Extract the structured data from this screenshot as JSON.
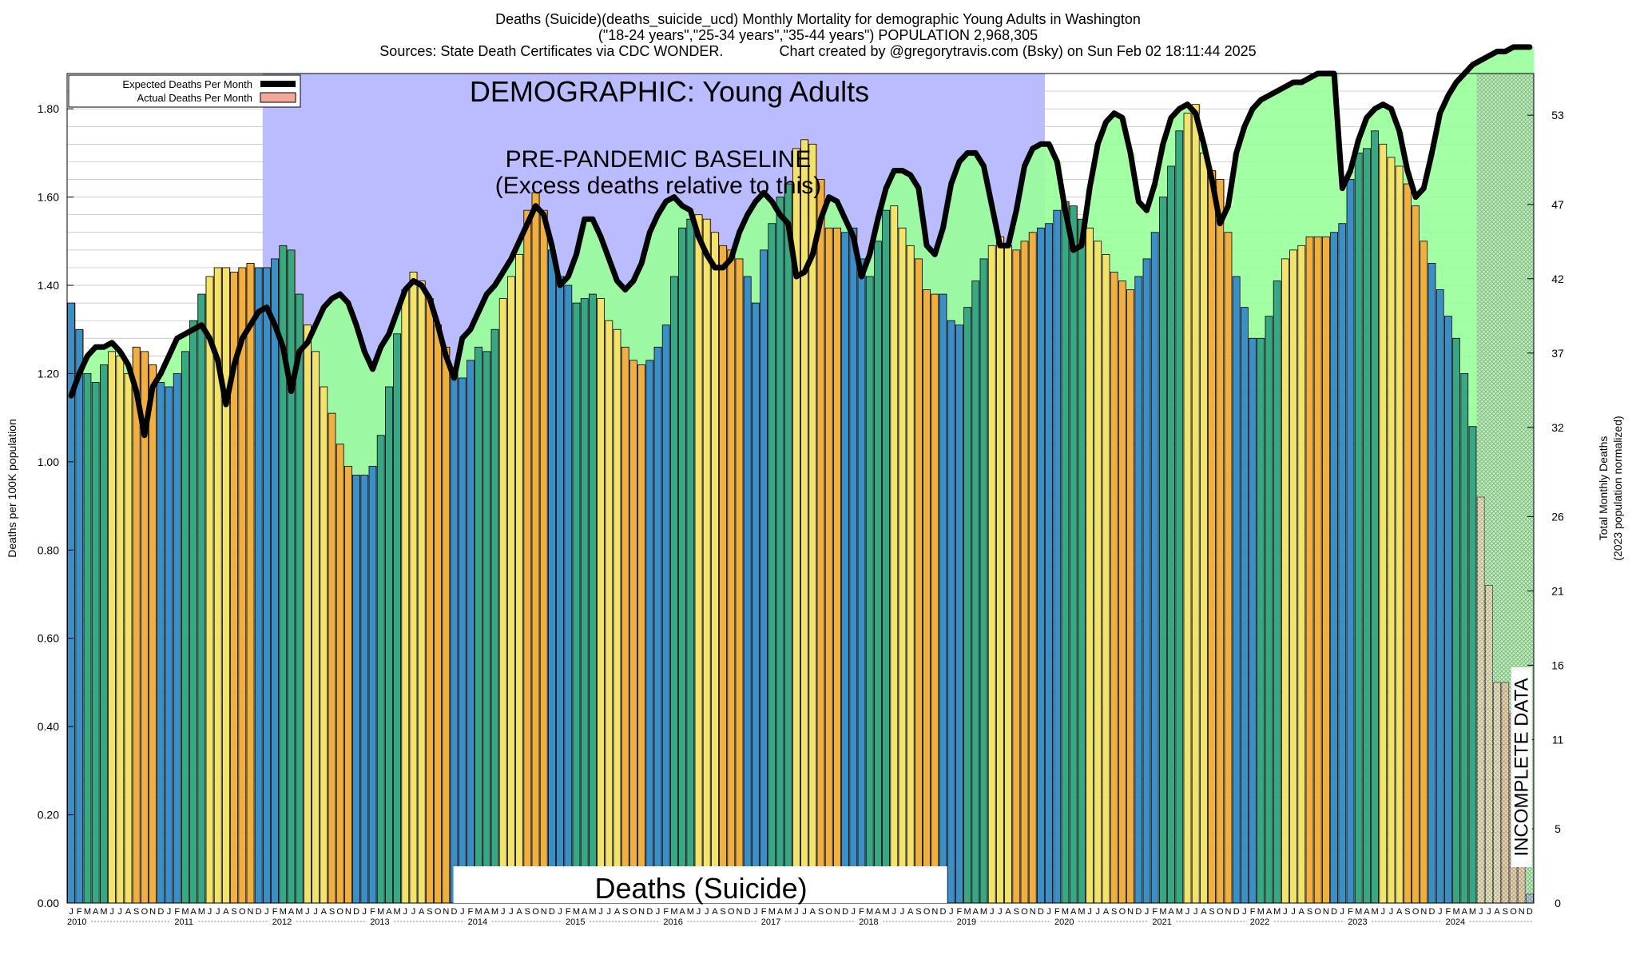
{
  "header": {
    "line1": "Deaths (Suicide)(deaths_suicide_ucd) Monthly Mortality for demographic Young Adults in Washington",
    "line2": "(\"18-24 years\",\"25-34 years\",\"35-44 years\") POPULATION 2,968,305",
    "line3": "Sources: State Death Certificates via CDC WONDER.              Chart created by @gregorytravis.com (Bsky) on Sun Feb 02 18:11:44 2025"
  },
  "annotations": {
    "demographic": "DEMOGRAPHIC: Young Adults",
    "baseline1": "PRE-PANDEMIC BASELINE",
    "baseline2": "(Excess deaths relative to this)",
    "cause": "Deaths (Suicide)",
    "incomplete": "INCOMPLETE DATA"
  },
  "legend": {
    "expected": "Expected Deaths Per Month",
    "actual": "Actual Deaths Per Month"
  },
  "colors": {
    "winter": "#3b8fc4",
    "spring": "#38a882",
    "summer": "#f2e36b",
    "fall": "#f0b040",
    "baseline_band": "#bbbbff",
    "excess_fill": "#f0784a",
    "deficit_fill": "#99ff99",
    "expected_line": "#000000"
  },
  "chart_data": {
    "type": "bar",
    "title": "Deaths (Suicide)(deaths_suicide_ucd) Monthly Mortality for demographic Young Adults in Washington",
    "ylabel": "Deaths per 100K population",
    "y2label1": "Total Monthly Deaths",
    "y2label2": "(2023 population normalized)",
    "ylim": [
      0,
      1.88
    ],
    "yticks": [
      "0.00",
      "0.20",
      "0.40",
      "0.60",
      "0.80",
      "1.00",
      "1.20",
      "1.40",
      "1.60",
      "1.80"
    ],
    "y2ticks": [
      "0",
      "5",
      "11",
      "16",
      "21",
      "26",
      "32",
      "37",
      "42",
      "47",
      "53"
    ],
    "y2values": [
      0,
      5,
      11,
      16,
      21,
      26,
      32,
      37,
      42,
      47,
      53
    ],
    "month_letters": [
      "J",
      "F",
      "M",
      "A",
      "M",
      "J",
      "J",
      "A",
      "S",
      "O",
      "N",
      "D"
    ],
    "years": [
      "2010",
      "2011",
      "2012",
      "2013",
      "2014",
      "2015",
      "2016",
      "2017",
      "2018",
      "2019",
      "2020",
      "2021",
      "2022",
      "2023",
      "2024"
    ],
    "baseline_period": [
      "2012-01",
      "2019-12"
    ],
    "incomplete_from": "2024-06",
    "series": [
      {
        "name": "Actual Deaths Per Month",
        "values": [
          1.36,
          1.3,
          1.2,
          1.18,
          1.22,
          1.25,
          1.24,
          1.2,
          1.26,
          1.25,
          1.22,
          1.18,
          1.17,
          1.2,
          1.25,
          1.32,
          1.38,
          1.42,
          1.44,
          1.44,
          1.43,
          1.44,
          1.45,
          1.44,
          1.44,
          1.46,
          1.49,
          1.48,
          1.38,
          1.31,
          1.25,
          1.17,
          1.11,
          1.04,
          0.99,
          0.97,
          0.97,
          0.99,
          1.06,
          1.17,
          1.29,
          1.39,
          1.43,
          1.41,
          1.37,
          1.31,
          1.26,
          1.21,
          1.19,
          1.23,
          1.26,
          1.25,
          1.3,
          1.37,
          1.42,
          1.47,
          1.57,
          1.61,
          1.57,
          1.48,
          1.42,
          1.4,
          1.36,
          1.37,
          1.38,
          1.37,
          1.32,
          1.3,
          1.26,
          1.23,
          1.22,
          1.23,
          1.26,
          1.31,
          1.42,
          1.53,
          1.55,
          1.56,
          1.55,
          1.52,
          1.49,
          1.48,
          1.46,
          1.42,
          1.36,
          1.48,
          1.54,
          1.6,
          1.63,
          1.71,
          1.73,
          1.72,
          1.64,
          1.53,
          1.53,
          1.52,
          1.53,
          1.46,
          1.42,
          1.5,
          1.57,
          1.58,
          1.53,
          1.49,
          1.46,
          1.39,
          1.38,
          1.38,
          1.32,
          1.31,
          1.35,
          1.41,
          1.46,
          1.49,
          1.51,
          1.49,
          1.48,
          1.5,
          1.52,
          1.53,
          1.54,
          1.57,
          1.59,
          1.58,
          1.55,
          1.53,
          1.5,
          1.47,
          1.43,
          1.41,
          1.39,
          1.42,
          1.46,
          1.52,
          1.6,
          1.67,
          1.75,
          1.79,
          1.81,
          1.7,
          1.66,
          1.64,
          1.52,
          1.42,
          1.35,
          1.28,
          1.28,
          1.33,
          1.41,
          1.46,
          1.48,
          1.49,
          1.51,
          1.51,
          1.51,
          1.52,
          1.54,
          1.64,
          1.7,
          1.71,
          1.75,
          1.72,
          1.69,
          1.67,
          1.63,
          1.58,
          1.5,
          1.45,
          1.39,
          1.33,
          1.28,
          1.2,
          1.08,
          0.92,
          0.72,
          0.5,
          0.5,
          0.43,
          0.09,
          0.02
        ]
      },
      {
        "name": "Expected Deaths Per Month",
        "values": [
          1.15,
          1.2,
          1.24,
          1.26,
          1.26,
          1.27,
          1.25,
          1.22,
          1.16,
          1.06,
          1.17,
          1.2,
          1.24,
          1.28,
          1.29,
          1.3,
          1.31,
          1.28,
          1.23,
          1.13,
          1.22,
          1.28,
          1.31,
          1.34,
          1.35,
          1.31,
          1.26,
          1.16,
          1.25,
          1.27,
          1.31,
          1.35,
          1.37,
          1.38,
          1.36,
          1.31,
          1.25,
          1.21,
          1.26,
          1.29,
          1.34,
          1.39,
          1.41,
          1.4,
          1.37,
          1.31,
          1.24,
          1.19,
          1.28,
          1.3,
          1.34,
          1.38,
          1.4,
          1.43,
          1.46,
          1.5,
          1.54,
          1.58,
          1.56,
          1.49,
          1.4,
          1.42,
          1.47,
          1.55,
          1.55,
          1.51,
          1.46,
          1.41,
          1.39,
          1.41,
          1.45,
          1.52,
          1.56,
          1.59,
          1.6,
          1.58,
          1.57,
          1.51,
          1.47,
          1.44,
          1.44,
          1.46,
          1.52,
          1.56,
          1.59,
          1.61,
          1.59,
          1.56,
          1.54,
          1.42,
          1.43,
          1.47,
          1.55,
          1.6,
          1.59,
          1.55,
          1.51,
          1.42,
          1.47,
          1.55,
          1.62,
          1.66,
          1.66,
          1.65,
          1.62,
          1.49,
          1.47,
          1.53,
          1.63,
          1.68,
          1.7,
          1.7,
          1.67,
          1.58,
          1.49,
          1.49,
          1.57,
          1.67,
          1.71,
          1.72,
          1.72,
          1.68,
          1.57,
          1.48,
          1.49,
          1.62,
          1.72,
          1.77,
          1.79,
          1.78,
          1.7,
          1.59,
          1.57,
          1.63,
          1.72,
          1.78,
          1.8,
          1.81,
          1.79,
          1.72,
          1.64,
          1.54,
          1.58,
          1.7,
          1.76,
          1.8,
          1.82,
          1.83,
          1.84,
          1.85,
          1.86,
          1.86,
          1.87,
          1.88,
          1.88,
          1.88,
          1.62,
          1.66,
          1.73,
          1.78,
          1.8,
          1.81,
          1.8,
          1.75,
          1.66,
          1.6,
          1.62,
          1.7,
          1.79,
          1.83,
          1.86,
          1.88,
          1.9,
          1.91,
          1.92,
          1.93,
          1.93,
          1.94,
          1.94,
          1.94
        ]
      }
    ]
  }
}
